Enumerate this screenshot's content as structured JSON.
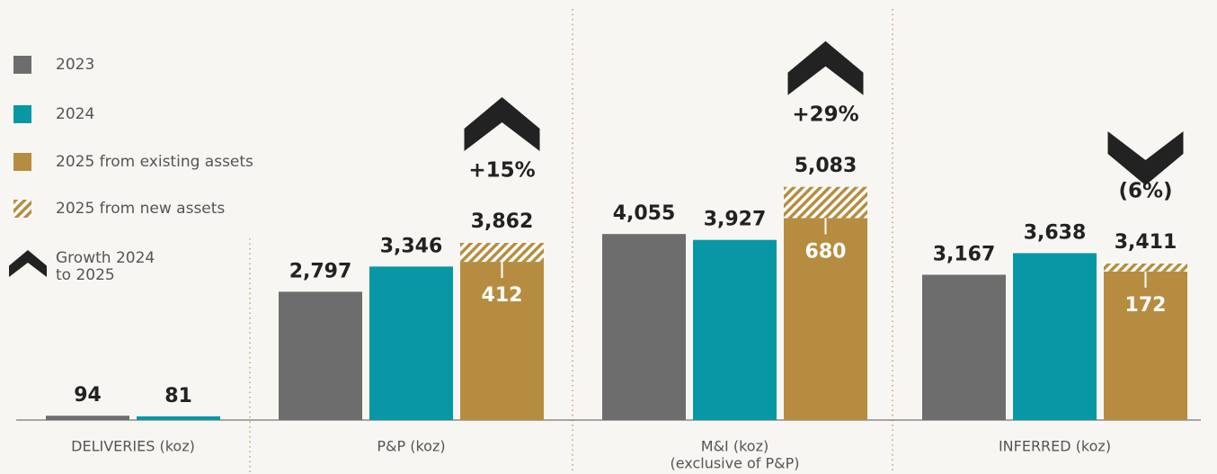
{
  "chart_data": {
    "type": "bar",
    "categories": [
      "DELIVERIES (koz)",
      "P&P (koz)",
      "M&I (koz)",
      "INFERRED (koz)"
    ],
    "category_notes": [
      null,
      null,
      "(exclusive of P&P)",
      null
    ],
    "series": [
      {
        "name": "2023",
        "color": "#6d6d6d",
        "values": [
          94,
          2797,
          4055,
          3167
        ],
        "value_labels": [
          "94",
          "2,797",
          "4,055",
          "3,167"
        ]
      },
      {
        "name": "2024",
        "color": "#0897a4",
        "values": [
          81,
          3346,
          3927,
          3638
        ],
        "value_labels": [
          "81",
          "3,346",
          "3,927",
          "3,638"
        ]
      },
      {
        "name": "2025 from existing assets",
        "color": "#b68d40",
        "values": [
          null,
          3450,
          4403,
          3239
        ]
      },
      {
        "name": "2025 from new assets",
        "color": "#b68d40",
        "pattern": "hatch",
        "values": [
          null,
          412,
          680,
          172
        ]
      }
    ],
    "totals": [
      null,
      3862,
      5083,
      3411
    ],
    "total_labels": [
      null,
      "3,862",
      "5,083",
      "3,411"
    ],
    "growth": [
      null,
      15,
      29,
      -6
    ],
    "growth_labels": [
      null,
      "+15%",
      "+29%",
      "(6%)"
    ],
    "growth_legend": [
      "Growth 2024",
      "to 2025"
    ],
    "ylim": [
      0,
      8000
    ]
  }
}
